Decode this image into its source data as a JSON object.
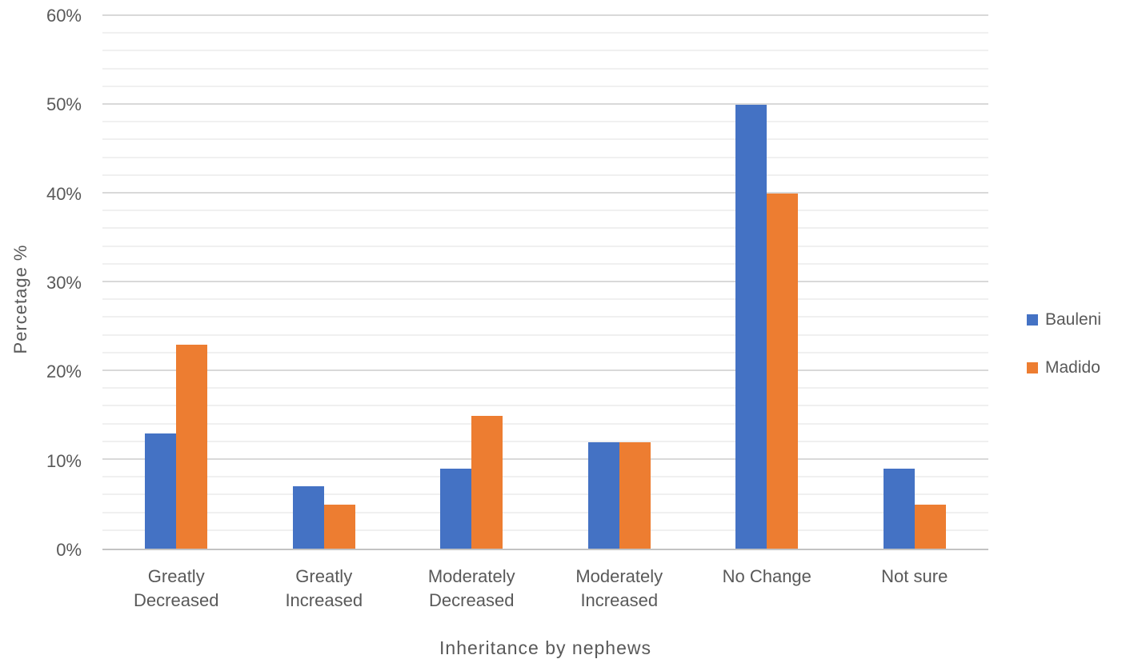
{
  "chart_data": {
    "type": "bar",
    "title": "",
    "xlabel": "Inheritance by nephews",
    "ylabel": "Percetage %",
    "categories": [
      "Greatly Decreased",
      "Greatly Increased",
      "Moderately Decreased",
      "Moderately Increased",
      "No Change",
      "Not sure"
    ],
    "series": [
      {
        "name": "Bauleni",
        "color": "#4472C4",
        "values": [
          13,
          7,
          9,
          12,
          50,
          9
        ]
      },
      {
        "name": "Madido",
        "color": "#ED7D31",
        "values": [
          23,
          5,
          15,
          12,
          40,
          5
        ]
      }
    ],
    "ylim": [
      0,
      60
    ],
    "y_major_step": 10,
    "y_minor_step": 2,
    "y_tick_labels": [
      "0%",
      "10%",
      "20%",
      "30%",
      "40%",
      "50%",
      "60%"
    ],
    "grid": true,
    "legend_position": "right",
    "colors": {
      "bauleni_blue": "#4472C4",
      "madido_orange": "#ED7D31",
      "major_gridline": "#d9d9d9",
      "minor_gridline": "#f0f0f0",
      "axis_line": "#c3c3c3",
      "text": "#595959",
      "background": "#ffffff"
    }
  }
}
